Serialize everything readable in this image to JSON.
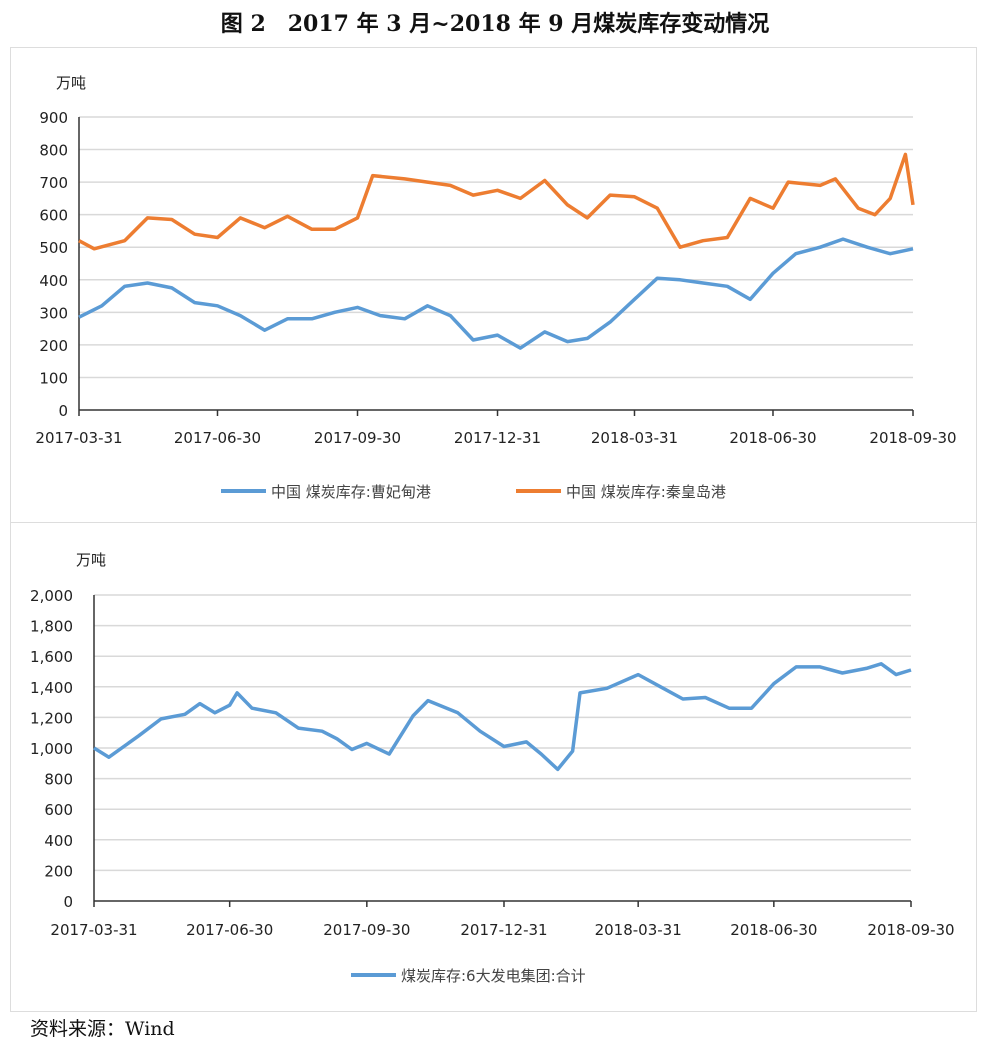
{
  "title": "图 2　2017 年 3 月~2018 年 9 月煤炭库存变动情况",
  "source": "资料来源：Wind",
  "chart_data": [
    {
      "type": "line",
      "ylabel": "万吨",
      "ylim": [
        0,
        900
      ],
      "yticks": [
        "0",
        "100",
        "200",
        "300",
        "400",
        "500",
        "600",
        "700",
        "800",
        "900"
      ],
      "xticks": [
        "2017-03-31",
        "2017-06-30",
        "2017-09-30",
        "2017-12-31",
        "2018-03-31",
        "2018-06-30",
        "2018-09-30"
      ],
      "grid": true,
      "legend": "bottom",
      "series": [
        {
          "name": "中国 煤炭库存:曹妃甸港",
          "color": "#5b9bd5",
          "x": [
            "2017-03-31",
            "2017-04-15",
            "2017-04-30",
            "2017-05-15",
            "2017-05-31",
            "2017-06-15",
            "2017-06-30",
            "2017-07-15",
            "2017-07-31",
            "2017-08-15",
            "2017-08-31",
            "2017-09-15",
            "2017-09-30",
            "2017-10-15",
            "2017-10-31",
            "2017-11-15",
            "2017-11-30",
            "2017-12-15",
            "2017-12-31",
            "2018-01-15",
            "2018-01-31",
            "2018-02-15",
            "2018-02-28",
            "2018-03-15",
            "2018-03-31",
            "2018-04-15",
            "2018-04-30",
            "2018-05-15",
            "2018-05-31",
            "2018-06-15",
            "2018-06-30",
            "2018-07-15",
            "2018-07-31",
            "2018-08-15",
            "2018-08-31",
            "2018-09-15",
            "2018-09-30"
          ],
          "values": [
            285,
            320,
            380,
            390,
            375,
            330,
            320,
            290,
            245,
            280,
            280,
            300,
            315,
            290,
            280,
            320,
            290,
            215,
            230,
            190,
            240,
            210,
            220,
            270,
            340,
            405,
            400,
            390,
            380,
            340,
            420,
            480,
            500,
            525,
            500,
            480,
            495
          ]
        },
        {
          "name": "中国 煤炭库存:秦皇岛港",
          "color": "#ed7d31",
          "x": [
            "2017-03-31",
            "2017-04-10",
            "2017-04-30",
            "2017-05-15",
            "2017-05-31",
            "2017-06-15",
            "2017-06-30",
            "2017-07-15",
            "2017-07-31",
            "2017-08-15",
            "2017-08-31",
            "2017-09-15",
            "2017-09-30",
            "2017-10-10",
            "2017-10-31",
            "2017-11-15",
            "2017-11-30",
            "2017-12-15",
            "2017-12-31",
            "2018-01-15",
            "2018-01-31",
            "2018-02-15",
            "2018-02-28",
            "2018-03-15",
            "2018-03-31",
            "2018-04-15",
            "2018-04-30",
            "2018-05-15",
            "2018-05-31",
            "2018-06-15",
            "2018-06-30",
            "2018-07-10",
            "2018-07-31",
            "2018-08-10",
            "2018-08-25",
            "2018-09-05",
            "2018-09-15",
            "2018-09-25",
            "2018-09-30"
          ],
          "values": [
            520,
            495,
            520,
            590,
            585,
            540,
            530,
            590,
            560,
            595,
            555,
            555,
            590,
            720,
            710,
            700,
            690,
            660,
            675,
            650,
            705,
            630,
            590,
            660,
            655,
            620,
            500,
            520,
            530,
            650,
            620,
            700,
            690,
            710,
            620,
            600,
            650,
            785,
            630
          ]
        }
      ]
    },
    {
      "type": "line",
      "ylabel": "万吨",
      "ylim": [
        0,
        2000
      ],
      "yticks": [
        "0",
        "200",
        "400",
        "600",
        "800",
        "1,000",
        "1,200",
        "1,400",
        "1,600",
        "1,800",
        "2,000"
      ],
      "xticks": [
        "2017-03-31",
        "2017-06-30",
        "2017-09-30",
        "2017-12-31",
        "2018-03-31",
        "2018-06-30",
        "2018-09-30"
      ],
      "grid": true,
      "legend": "bottom",
      "series": [
        {
          "name": "煤炭库存:6大发电集团:合计",
          "color": "#5b9bd5",
          "x": [
            "2017-03-31",
            "2017-04-10",
            "2017-04-30",
            "2017-05-15",
            "2017-05-31",
            "2017-06-10",
            "2017-06-20",
            "2017-06-30",
            "2017-07-05",
            "2017-07-15",
            "2017-07-31",
            "2017-08-15",
            "2017-08-31",
            "2017-09-10",
            "2017-09-20",
            "2017-09-30",
            "2017-10-15",
            "2017-10-31",
            "2017-11-10",
            "2017-11-30",
            "2017-12-15",
            "2017-12-31",
            "2018-01-15",
            "2018-01-25",
            "2018-02-05",
            "2018-02-15",
            "2018-02-20",
            "2018-03-10",
            "2018-03-31",
            "2018-04-15",
            "2018-04-30",
            "2018-05-15",
            "2018-05-31",
            "2018-06-15",
            "2018-06-30",
            "2018-07-15",
            "2018-07-31",
            "2018-08-15",
            "2018-08-31",
            "2018-09-10",
            "2018-09-20",
            "2018-09-30"
          ],
          "values": [
            1000,
            940,
            1080,
            1190,
            1220,
            1290,
            1230,
            1280,
            1360,
            1260,
            1230,
            1130,
            1110,
            1060,
            990,
            1030,
            960,
            1210,
            1310,
            1230,
            1110,
            1010,
            1040,
            960,
            860,
            980,
            1360,
            1390,
            1480,
            1400,
            1320,
            1330,
            1260,
            1260,
            1420,
            1530,
            1530,
            1490,
            1520,
            1550,
            1480,
            1510
          ]
        }
      ]
    }
  ]
}
